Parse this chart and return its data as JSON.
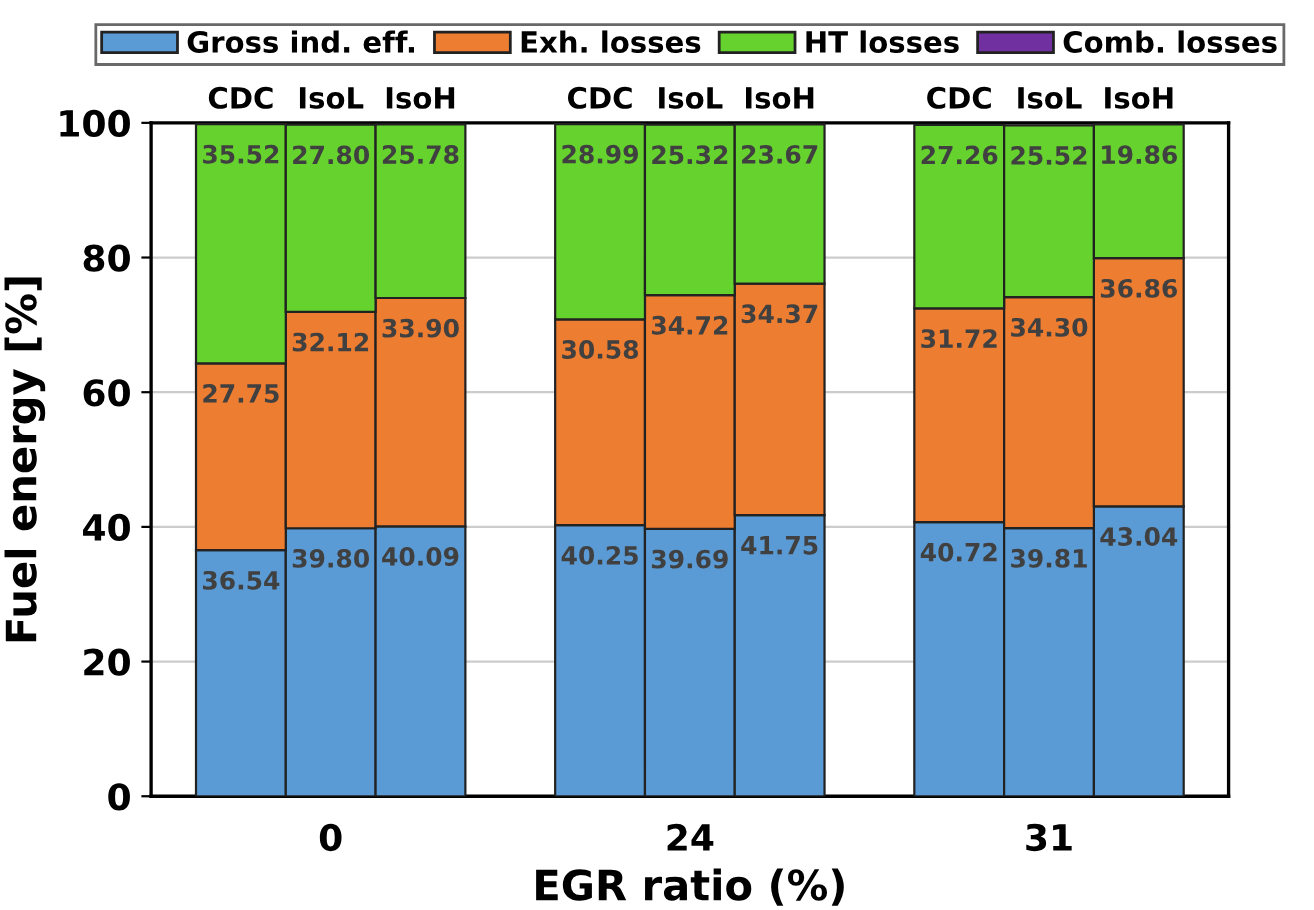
{
  "chart_data": {
    "type": "bar",
    "stacked": true,
    "xlabel": "EGR ratio (%)",
    "ylabel": "Fuel energy [%]",
    "categories": [
      "CDC",
      "IsoL",
      "IsoH",
      null,
      "CDC",
      "IsoL",
      "IsoH",
      null,
      "CDC",
      "IsoL",
      "IsoH"
    ],
    "annotations": [
      "0",
      "24",
      "31"
    ],
    "series": [
      {
        "name": "Gross ind. eff.",
        "color": "#5b9bd5",
        "values": [
          36.54,
          39.8,
          40.09,
          null,
          40.25,
          39.69,
          41.75,
          null,
          40.72,
          39.81,
          43.04
        ],
        "value_labels": [
          "36.54",
          "39.80",
          "40.09",
          null,
          "40.25",
          "39.69",
          "41.75",
          null,
          "40.72",
          "39.81",
          "43.04"
        ]
      },
      {
        "name": "Exh. losses",
        "color": "#ed7d31",
        "values": [
          27.75,
          32.12,
          33.9,
          null,
          30.58,
          34.72,
          34.37,
          null,
          31.72,
          34.3,
          36.86
        ],
        "value_labels": [
          "27.75",
          "32.12",
          "33.90",
          null,
          "30.58",
          "34.72",
          "34.37",
          null,
          "31.72",
          "34.30",
          "36.86"
        ]
      },
      {
        "name": "HT losses",
        "color": "#66d22e",
        "values": [
          35.52,
          27.8,
          25.78,
          null,
          28.99,
          25.32,
          23.67,
          null,
          27.26,
          25.52,
          19.86
        ],
        "value_labels": [
          "35.52",
          "27.80",
          "25.78",
          null,
          "28.99",
          "25.32",
          "23.67",
          null,
          "27.26",
          "25.52",
          "19.86"
        ]
      },
      {
        "name": "Comb. losses",
        "color": "#7030a0",
        "values": [
          null,
          null,
          null,
          null,
          null,
          null,
          null,
          null,
          null,
          null,
          null
        ]
      }
    ],
    "ylim": [
      0,
      100
    ],
    "yticks": [
      0,
      20,
      40,
      60,
      80,
      100
    ],
    "grid": "y",
    "legend": "top"
  }
}
